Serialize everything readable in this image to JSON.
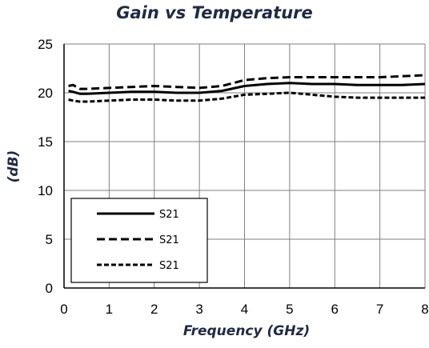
{
  "chart_data": {
    "type": "line",
    "title": "Gain vs Temperature",
    "xlabel": "Frequency (GHz)",
    "ylabel": "(dB)",
    "xlim": [
      0,
      8
    ],
    "ylim": [
      0,
      25
    ],
    "xticks": [
      0,
      1,
      2,
      3,
      4,
      5,
      6,
      7,
      8
    ],
    "yticks": [
      0,
      5,
      10,
      15,
      20,
      25
    ],
    "grid": true,
    "legend": "bottom-left",
    "series": [
      {
        "name": "S21",
        "style": "solid",
        "color": "#000000",
        "x": [
          0.1,
          0.2,
          0.35,
          0.5,
          1,
          1.5,
          2,
          2.5,
          3,
          3.5,
          4,
          4.5,
          5,
          5.5,
          6,
          6.5,
          7,
          7.5,
          8
        ],
        "y": [
          20.2,
          20.1,
          19.9,
          19.9,
          20.0,
          20.1,
          20.1,
          20.0,
          20.0,
          20.2,
          20.7,
          20.9,
          21.0,
          20.9,
          20.9,
          20.8,
          20.8,
          20.8,
          20.9
        ]
      },
      {
        "name": "S21",
        "style": "dashed",
        "color": "#000000",
        "x": [
          0.1,
          0.2,
          0.35,
          0.5,
          1,
          1.5,
          2,
          2.5,
          3,
          3.5,
          4,
          4.5,
          5,
          5.5,
          6,
          6.5,
          7,
          7.5,
          8
        ],
        "y": [
          20.7,
          20.8,
          20.4,
          20.4,
          20.5,
          20.6,
          20.7,
          20.6,
          20.5,
          20.7,
          21.3,
          21.5,
          21.6,
          21.6,
          21.6,
          21.6,
          21.6,
          21.7,
          21.8
        ]
      },
      {
        "name": "S21",
        "style": "dotted",
        "color": "#000000",
        "x": [
          0.1,
          0.2,
          0.35,
          0.5,
          1,
          1.5,
          2,
          2.5,
          3,
          3.5,
          4,
          4.5,
          5,
          5.5,
          6,
          6.5,
          7,
          7.5,
          8
        ],
        "y": [
          19.3,
          19.2,
          19.1,
          19.1,
          19.2,
          19.3,
          19.3,
          19.2,
          19.2,
          19.4,
          19.8,
          19.9,
          20.0,
          19.8,
          19.6,
          19.5,
          19.5,
          19.5,
          19.5
        ]
      }
    ]
  }
}
